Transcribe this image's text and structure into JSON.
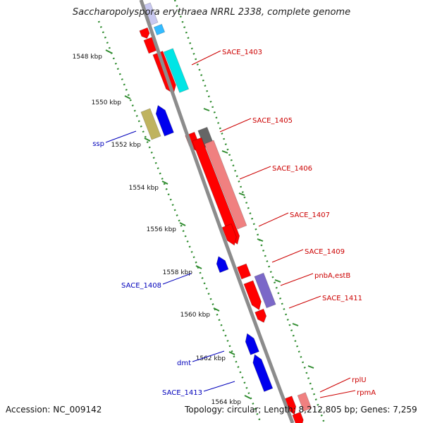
{
  "title": "Saccharopolyspora erythraea NRRL 2338, complete genome",
  "footer": {
    "accession": "Accession: NC_009142",
    "summary": "Topology: circular; Length: 8,212,805 bp; Genes: 7,259"
  },
  "colors": {
    "backbone": "#8c8c8c",
    "tick_ring": "#2e8b2e",
    "label_forward": "#cc0000",
    "label_reverse": "#0000bb",
    "feature_red": "#ff0000",
    "feature_blue": "#0000ee",
    "feature_cyan": "#00e5e5",
    "feature_pink": "#f08080",
    "feature_gray": "#666666",
    "feature_olive": "#bfb35f",
    "feature_lavender": "#7b68c8"
  },
  "ticks": [
    "1548 kbp",
    "1550 kbp",
    "1552 kbp",
    "1554 kbp",
    "1556 kbp",
    "1558 kbp",
    "1560 kbp",
    "1562 kbp",
    "1564 kbp"
  ],
  "genes_forward": [
    "SACE_1403",
    "SACE_1405",
    "SACE_1406",
    "SACE_1407",
    "SACE_1409",
    "pnbA,estB",
    "SACE_1411",
    "rplU",
    "rpmA"
  ],
  "genes_reverse": [
    "ssp",
    "SACE_1408",
    "dmt",
    "SACE_1413"
  ]
}
